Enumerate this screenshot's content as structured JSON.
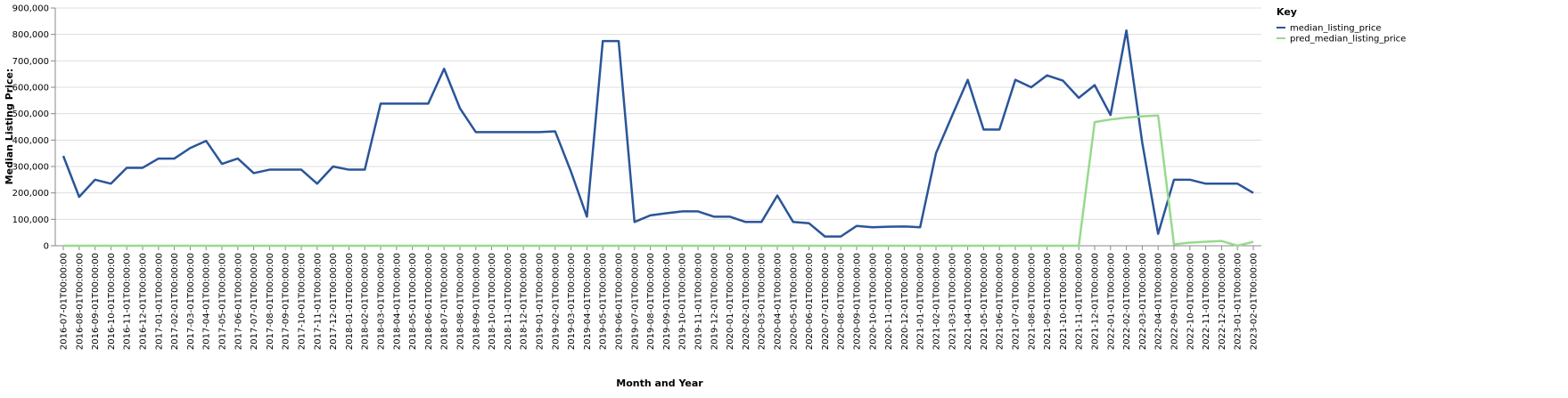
{
  "chart_data": {
    "type": "line",
    "x_label": "Month and Year",
    "y_label": "Median Listing Price:",
    "legend_title": "Key",
    "legend_position": "right",
    "grid": true,
    "categories": [
      "2016-07-01T00:00:00",
      "2016-08-01T00:00:00",
      "2016-09-01T00:00:00",
      "2016-10-01T00:00:00",
      "2016-11-01T00:00:00",
      "2016-12-01T00:00:00",
      "2017-01-01T00:00:00",
      "2017-02-01T00:00:00",
      "2017-03-01T00:00:00",
      "2017-04-01T00:00:00",
      "2017-05-01T00:00:00",
      "2017-06-01T00:00:00",
      "2017-07-01T00:00:00",
      "2017-08-01T00:00:00",
      "2017-09-01T00:00:00",
      "2017-10-01T00:00:00",
      "2017-11-01T00:00:00",
      "2017-12-01T00:00:00",
      "2018-01-01T00:00:00",
      "2018-02-01T00:00:00",
      "2018-03-01T00:00:00",
      "2018-04-01T00:00:00",
      "2018-05-01T00:00:00",
      "2018-06-01T00:00:00",
      "2018-07-01T00:00:00",
      "2018-08-01T00:00:00",
      "2018-09-01T00:00:00",
      "2018-10-01T00:00:00",
      "2018-11-01T00:00:00",
      "2018-12-01T00:00:00",
      "2019-01-01T00:00:00",
      "2019-02-01T00:00:00",
      "2019-03-01T00:00:00",
      "2019-04-01T00:00:00",
      "2019-05-01T00:00:00",
      "2019-06-01T00:00:00",
      "2019-07-01T00:00:00",
      "2019-08-01T00:00:00",
      "2019-09-01T00:00:00",
      "2019-10-01T00:00:00",
      "2019-11-01T00:00:00",
      "2019-12-01T00:00:00",
      "2020-01-01T00:00:00",
      "2020-02-01T00:00:00",
      "2020-03-01T00:00:00",
      "2020-04-01T00:00:00",
      "2020-05-01T00:00:00",
      "2020-06-01T00:00:00",
      "2020-07-01T00:00:00",
      "2020-08-01T00:00:00",
      "2020-09-01T00:00:00",
      "2020-10-01T00:00:00",
      "2020-11-01T00:00:00",
      "2020-12-01T00:00:00",
      "2021-01-01T00:00:00",
      "2021-02-01T00:00:00",
      "2021-03-01T00:00:00",
      "2021-04-01T00:00:00",
      "2021-05-01T00:00:00",
      "2021-06-01T00:00:00",
      "2021-07-01T00:00:00",
      "2021-08-01T00:00:00",
      "2021-09-01T00:00:00",
      "2021-10-01T00:00:00",
      "2021-11-01T00:00:00",
      "2021-12-01T00:00:00",
      "2022-01-01T00:00:00",
      "2022-02-01T00:00:00",
      "2022-03-01T00:00:00",
      "2022-04-01T00:00:00",
      "2022-09-01T00:00:00",
      "2022-10-01T00:00:00",
      "2022-11-01T00:00:00",
      "2022-12-01T00:00:00",
      "2023-01-01T00:00:00",
      "2023-02-01T00:00:00"
    ],
    "series": [
      {
        "name": "median_listing_price",
        "color": "#2a5599",
        "values": [
          340000,
          185000,
          250000,
          235000,
          295000,
          295000,
          330000,
          330000,
          370000,
          397000,
          310000,
          330000,
          275000,
          288000,
          288000,
          288000,
          235000,
          300000,
          288000,
          288000,
          538000,
          538000,
          538000,
          538000,
          670000,
          520000,
          430000,
          430000,
          430000,
          430000,
          430000,
          433000,
          280000,
          110000,
          775000,
          775000,
          90000,
          115000,
          123000,
          130000,
          130000,
          110000,
          110000,
          90000,
          90000,
          190000,
          90000,
          85000,
          35000,
          35000,
          75000,
          70000,
          72000,
          73000,
          70000,
          350000,
          490000,
          628000,
          440000,
          440000,
          628000,
          600000,
          645000,
          625000,
          560000,
          608000,
          495000,
          815000,
          390000,
          45000,
          250000,
          250000,
          235000,
          235000,
          235000,
          200000
        ]
      },
      {
        "name": "pred_median_listing_price",
        "color": "#98d98e",
        "values": [
          0,
          0,
          0,
          0,
          0,
          0,
          0,
          0,
          0,
          0,
          0,
          0,
          0,
          0,
          0,
          0,
          0,
          0,
          0,
          0,
          0,
          0,
          0,
          0,
          0,
          0,
          0,
          0,
          0,
          0,
          0,
          0,
          0,
          0,
          0,
          0,
          0,
          0,
          0,
          0,
          0,
          0,
          0,
          0,
          0,
          0,
          0,
          0,
          0,
          0,
          0,
          0,
          0,
          0,
          0,
          0,
          0,
          0,
          0,
          0,
          0,
          0,
          0,
          0,
          0,
          468000,
          478000,
          485000,
          490000,
          493000,
          5000,
          12000,
          15000,
          18000,
          0,
          15000
        ]
      }
    ],
    "ylim": [
      0,
      900000
    ],
    "yticks": [
      0,
      {
        "value": 100000,
        "label": "100,000"
      },
      {
        "value": 200000,
        "label": "200,000"
      },
      {
        "value": 300000,
        "label": "300,000"
      },
      {
        "value": 400000,
        "label": "400,000"
      },
      {
        "value": 500000,
        "label": "500,000"
      },
      {
        "value": 600000,
        "label": "600,000"
      },
      {
        "value": 700000,
        "label": "700,000"
      },
      {
        "value": 800000,
        "label": "800,000"
      },
      {
        "value": 900000,
        "label": "900,000"
      }
    ]
  }
}
